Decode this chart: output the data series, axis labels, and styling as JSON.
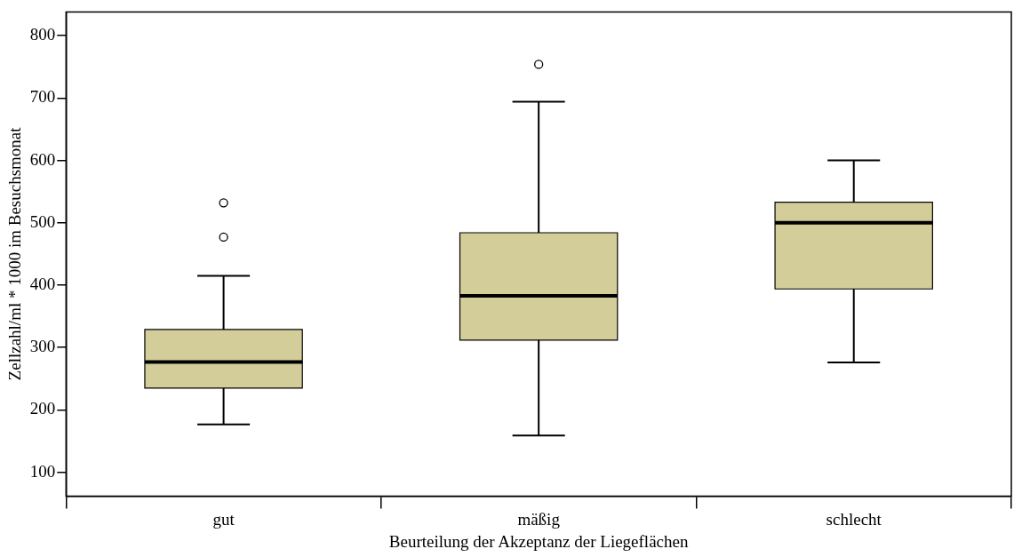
{
  "chart_data": {
    "type": "box",
    "xlabel": "Beurteilung der Akzeptanz der Liegeflächen",
    "ylabel": "Zellzahl/ml * 1000 im Besuchsmonat",
    "categories": [
      "gut",
      "mäßig",
      "schlecht"
    ],
    "color": "#d3ce99",
    "boxes": [
      {
        "low": 177,
        "q1": 235,
        "median": 277,
        "q3": 329,
        "high": 415,
        "outliers": [
          477,
          532
        ]
      },
      {
        "low": 159,
        "q1": 312,
        "median": 383,
        "q3": 484,
        "high": 694,
        "outliers": [
          754
        ]
      },
      {
        "low": 276,
        "q1": 394,
        "median": 500,
        "q3": 533,
        "high": 600
      }
    ],
    "ylim": [
      62,
      838
    ],
    "yticks": [
      100,
      200,
      300,
      400,
      500,
      600,
      700,
      800
    ],
    "grid": false,
    "legend": false
  }
}
